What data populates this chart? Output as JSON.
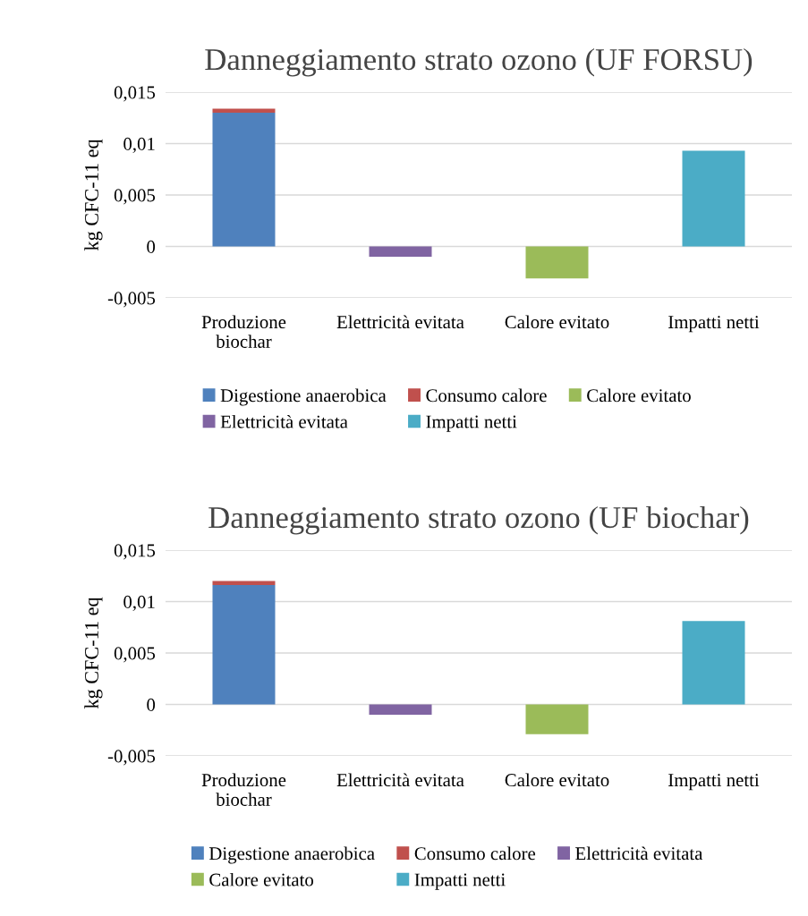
{
  "chart_data": [
    {
      "type": "bar",
      "stacked": true,
      "title": "Danneggiamento strato ozono (UF FORSU)",
      "ylabel": "kg CFC-11 eq",
      "categories": [
        "Produzione\nbiochar",
        "Elettricità evitata",
        "Calore evitato",
        "Impatti netti"
      ],
      "series": [
        {
          "name": "Digestione anaerobica",
          "color": "#4f81bd",
          "values": [
            0.013,
            null,
            null,
            null
          ]
        },
        {
          "name": "Consumo calore",
          "color": "#c0504d",
          "values": [
            0.0004,
            null,
            null,
            null
          ]
        },
        {
          "name": "Calore evitato",
          "color": "#9bbb59",
          "values": [
            null,
            null,
            -0.0031,
            null
          ]
        },
        {
          "name": "Elettricità evitata",
          "color": "#8064a2",
          "values": [
            null,
            -0.001,
            null,
            null
          ]
        },
        {
          "name": "Impatti netti",
          "color": "#4bacc6",
          "values": [
            null,
            null,
            null,
            0.0093
          ]
        }
      ],
      "ylim": [
        -0.005,
        0.015
      ],
      "yticks": [
        {
          "value": -0.005,
          "label": "-0,005"
        },
        0,
        {
          "value": 0.005,
          "label": "0,005"
        },
        {
          "value": 0.01,
          "label": "0,01"
        },
        {
          "value": 0.015,
          "label": "0,015"
        }
      ],
      "grid": "y",
      "legend": "bottom"
    },
    {
      "type": "bar",
      "stacked": true,
      "title": "Danneggiamento strato ozono (UF biochar)",
      "ylabel": "kg CFC-11 eq",
      "categories": [
        "Produzione\nbiochar",
        "Elettricità evitata",
        "Calore evitato",
        "Impatti netti"
      ],
      "series": [
        {
          "name": "Digestione anaerobica",
          "color": "#4f81bd",
          "values": [
            0.0116,
            null,
            null,
            null
          ]
        },
        {
          "name": "Consumo calore",
          "color": "#c0504d",
          "values": [
            0.0004,
            null,
            null,
            null
          ]
        },
        {
          "name": "Elettricità evitata",
          "color": "#8064a2",
          "values": [
            null,
            -0.001,
            null,
            null
          ]
        },
        {
          "name": "Calore evitato",
          "color": "#9bbb59",
          "values": [
            null,
            null,
            -0.0029,
            null
          ]
        },
        {
          "name": "Impatti netti",
          "color": "#4bacc6",
          "values": [
            null,
            null,
            null,
            0.0081
          ]
        }
      ],
      "ylim": [
        -0.005,
        0.015
      ],
      "yticks": [
        {
          "value": -0.005,
          "label": "-0,005"
        },
        0,
        {
          "value": 0.005,
          "label": "0,005"
        },
        {
          "value": 0.01,
          "label": "0,01"
        },
        {
          "value": 0.015,
          "label": "0,015"
        }
      ],
      "grid": "y",
      "legend": "bottom"
    }
  ]
}
